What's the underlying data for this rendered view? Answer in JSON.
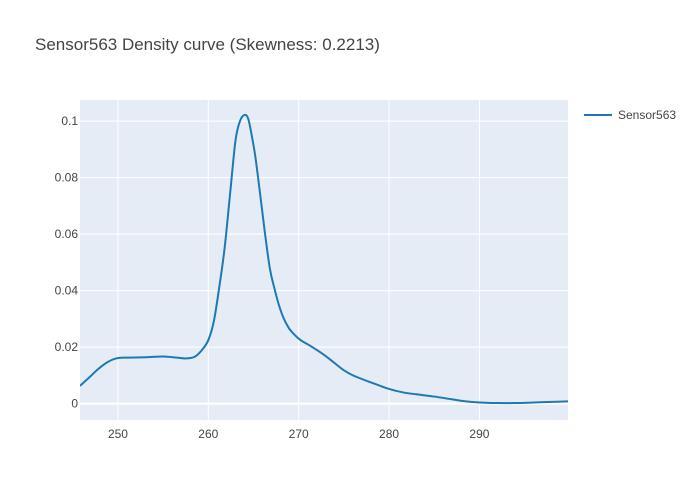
{
  "chart_data": {
    "type": "line",
    "title": "Sensor563 Density curve (Skewness: 0.2213)",
    "xlabel": "",
    "ylabel": "",
    "xlim": [
      245.8,
      299.8
    ],
    "ylim": [
      -0.0058,
      0.1075
    ],
    "x_ticks": [
      250,
      260,
      270,
      280,
      290
    ],
    "x_tick_labels": [
      "250",
      "260",
      "270",
      "280",
      "290"
    ],
    "y_ticks": [
      0,
      0.02,
      0.04,
      0.06,
      0.08,
      0.1
    ],
    "y_tick_labels": [
      "0",
      "0.02",
      "0.04",
      "0.06",
      "0.08",
      "0.1"
    ],
    "grid": true,
    "legend_position": "top-right",
    "colors": {
      "plot_background": "#e5ecf6",
      "grid": "#ffffff",
      "series": "#1f77b4"
    },
    "series": [
      {
        "name": "Sensor563",
        "color": "#1f77b4",
        "x": [
          245.8,
          246.8,
          247.8,
          248.8,
          249.8,
          251.0,
          253.0,
          255.0,
          256.5,
          257.5,
          258.5,
          259.3,
          260.0,
          260.6,
          261.2,
          261.8,
          262.4,
          263.0,
          263.5,
          264.0,
          264.4,
          264.8,
          265.2,
          265.7,
          266.2,
          266.8,
          267.3,
          267.8,
          268.3,
          268.9,
          269.5,
          270.2,
          271.0,
          272.0,
          273.0,
          274.0,
          275.0,
          276.0,
          278.0,
          280.0,
          281.5,
          283.0,
          285.0,
          287.0,
          288.5,
          290.0,
          292.0,
          294.0,
          296.0,
          298.0,
          299.8
        ],
        "y": [
          0.0063,
          0.0092,
          0.0122,
          0.0146,
          0.016,
          0.0163,
          0.0164,
          0.0167,
          0.0163,
          0.016,
          0.0166,
          0.019,
          0.0225,
          0.029,
          0.041,
          0.055,
          0.074,
          0.093,
          0.1,
          0.1022,
          0.101,
          0.095,
          0.0875,
          0.075,
          0.062,
          0.048,
          0.041,
          0.035,
          0.0305,
          0.0268,
          0.0245,
          0.0225,
          0.021,
          0.019,
          0.0168,
          0.0143,
          0.0118,
          0.01,
          0.0075,
          0.0052,
          0.004,
          0.0033,
          0.0025,
          0.0015,
          0.0008,
          0.0004,
          0.0002,
          0.0002,
          0.0004,
          0.0006,
          0.0008
        ]
      }
    ]
  }
}
